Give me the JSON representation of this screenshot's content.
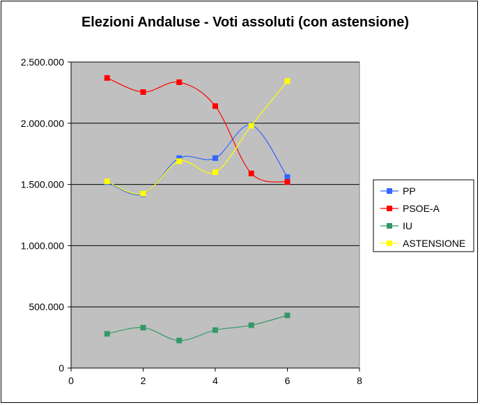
{
  "chart_data": {
    "type": "scatter",
    "title": "Elezioni Andaluse - Voti assoluti (con astensione)",
    "xlabel": "",
    "ylabel": "",
    "xlim": [
      0,
      8
    ],
    "ylim": [
      0,
      2500000
    ],
    "x_ticks": [
      0,
      2,
      4,
      6,
      8
    ],
    "y_ticks": [
      0,
      500000,
      1000000,
      1500000,
      2000000,
      2500000
    ],
    "x_tick_labels": [
      "0",
      "2",
      "4",
      "6",
      "8"
    ],
    "y_tick_labels": [
      "0",
      "500.000",
      "1.000.000",
      "1.500.000",
      "2.000.000",
      "2.500.000"
    ],
    "grid": "horizontal",
    "legend_position": "right",
    "plot_background": "#c0c0c0",
    "series": [
      {
        "name": "PP",
        "color": "#3366ff",
        "x": [
          1,
          2,
          3,
          4,
          5,
          6
        ],
        "y": [
          1520000,
          1420000,
          1715000,
          1715000,
          1985000,
          1560000
        ]
      },
      {
        "name": "PSOE-A",
        "color": "#ff0000",
        "x": [
          1,
          2,
          3,
          4,
          5,
          6
        ],
        "y": [
          2370000,
          2255000,
          2335000,
          2140000,
          1590000,
          1520000
        ]
      },
      {
        "name": "IU",
        "color": "#339966",
        "x": [
          1,
          2,
          3,
          4,
          5,
          6
        ],
        "y": [
          280000,
          330000,
          225000,
          310000,
          350000,
          430000
        ]
      },
      {
        "name": "ASTENSIONE",
        "color": "#ffff00",
        "x": [
          1,
          2,
          3,
          4,
          5,
          6
        ],
        "y": [
          1525000,
          1425000,
          1690000,
          1600000,
          1980000,
          2345000
        ]
      }
    ]
  }
}
